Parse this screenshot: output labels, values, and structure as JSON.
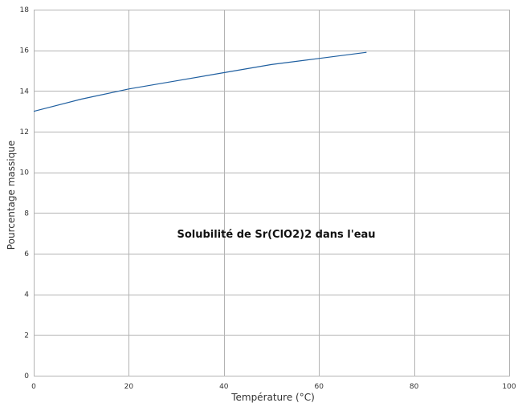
{
  "chart_data": {
    "type": "line",
    "title": "Solubilité de Sr(ClO2)2 dans l'eau",
    "xlabel": "Température (°C)",
    "ylabel": "Pourcentage massique",
    "xlim": [
      0,
      100
    ],
    "ylim": [
      0,
      18
    ],
    "x_ticks": [
      0,
      20,
      40,
      60,
      80,
      100
    ],
    "y_ticks": [
      0,
      2,
      4,
      6,
      8,
      10,
      12,
      14,
      16,
      18
    ],
    "grid": true,
    "legend": "none",
    "series": [
      {
        "color": "#1f5fa0",
        "points": [
          {
            "x": 0,
            "y": 13.0
          },
          {
            "x": 10,
            "y": 13.6
          },
          {
            "x": 20,
            "y": 14.1
          },
          {
            "x": 30,
            "y": 14.5
          },
          {
            "x": 40,
            "y": 14.9
          },
          {
            "x": 50,
            "y": 15.3
          },
          {
            "x": 60,
            "y": 15.6
          },
          {
            "x": 70,
            "y": 15.9
          }
        ]
      }
    ]
  }
}
